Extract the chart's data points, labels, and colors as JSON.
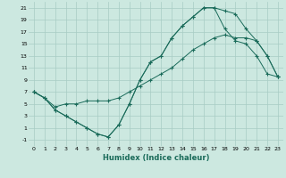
{
  "xlabel": "Humidex (Indice chaleur)",
  "bg_color": "#cce8e0",
  "grid_color": "#a8ccc4",
  "line_color": "#1a6b5a",
  "xlim": [
    -0.5,
    23.5
  ],
  "ylim": [
    -2,
    22
  ],
  "xticks": [
    0,
    1,
    2,
    3,
    4,
    5,
    6,
    7,
    8,
    9,
    10,
    11,
    12,
    13,
    14,
    15,
    16,
    17,
    18,
    19,
    20,
    21,
    22,
    23
  ],
  "yticks": [
    -1,
    1,
    3,
    5,
    7,
    9,
    11,
    13,
    15,
    17,
    19,
    21
  ],
  "line1_x": [
    0,
    1,
    2,
    3,
    4,
    5,
    6,
    7,
    8,
    9,
    10,
    11,
    12,
    13,
    14,
    15,
    16,
    17,
    18,
    19,
    20,
    21,
    22,
    23
  ],
  "line1_y": [
    7,
    6,
    4,
    3,
    2,
    1,
    0,
    -0.5,
    1.5,
    5,
    9,
    12,
    13,
    16,
    18,
    19.5,
    21,
    21,
    20.5,
    20,
    17.5,
    15.5,
    13,
    9.5
  ],
  "line2_x": [
    0,
    1,
    2,
    3,
    4,
    5,
    6,
    7,
    8,
    9,
    10,
    11,
    12,
    13,
    14,
    15,
    16,
    17,
    18,
    19,
    20,
    21,
    22,
    23
  ],
  "line2_y": [
    7,
    6,
    4,
    3,
    2,
    1,
    0,
    -0.5,
    1.5,
    5,
    9,
    12,
    13,
    16,
    18,
    19.5,
    21,
    21,
    17.5,
    15.5,
    15,
    13,
    10,
    9.5
  ],
  "line3_x": [
    0,
    1,
    2,
    3,
    4,
    5,
    6,
    7,
    8,
    9,
    10,
    11,
    12,
    13,
    14,
    15,
    16,
    17,
    18,
    19,
    20,
    21,
    22,
    23
  ],
  "line3_y": [
    7,
    6,
    4.5,
    5,
    5,
    5.5,
    5.5,
    5.5,
    6,
    7,
    8,
    9,
    10,
    11,
    12.5,
    14,
    15,
    16,
    16.5,
    16,
    16,
    15.5,
    13,
    9.5
  ]
}
